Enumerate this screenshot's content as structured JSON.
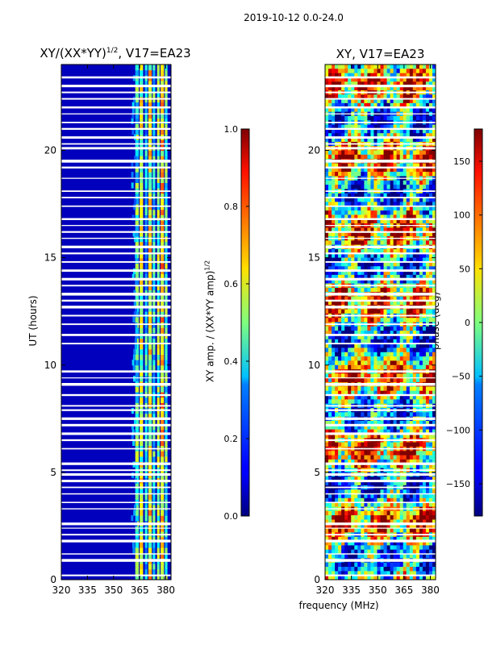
{
  "figure": {
    "suptitle": "2019-10-12 0.0-24.0",
    "xlabel": "frequency (MHz)"
  },
  "left_panel": {
    "title_main": "XY/(XX*YY)",
    "title_sup": "1/2",
    "title_tail": ", V17=EA23",
    "ylabel": "UT (hours)"
  },
  "right_panel": {
    "title": "XY, V17=EA23"
  },
  "amp_colorbar": {
    "label_main": "XY amp. / (XX*YY amp)",
    "label_sup": "1/2"
  },
  "phase_colorbar": {
    "label": "phase (deg)"
  },
  "chart_data": [
    {
      "type": "heatmap",
      "title": "XY/(XX*YY)^1/2, V17=EA23",
      "xlabel": "",
      "ylabel": "UT (hours)",
      "xlim": [
        320,
        383
      ],
      "ylim": [
        0,
        24
      ],
      "xticks": [
        320,
        335,
        350,
        365,
        380
      ],
      "yticks": [
        0,
        5,
        10,
        15,
        20
      ],
      "colormap": "jet",
      "color_range": [
        0.0,
        1.0
      ],
      "colorbar_label": "XY amp. / (XX*YY amp)^1/2",
      "colorbar_ticks": [
        0.0,
        0.2,
        0.4,
        0.6,
        0.8,
        1.0
      ],
      "flagged_utc_hours_approx": [
        0.2,
        0.9,
        1.2,
        1.8,
        2.1,
        2.4,
        2.6,
        3.3,
        3.6,
        4.0,
        4.3,
        4.6,
        4.9,
        5.1,
        5.4,
        6.1,
        6.5,
        6.8,
        7.2,
        7.5,
        7.9,
        8.1,
        8.6,
        9.1,
        9.4,
        9.7,
        11.0,
        11.4,
        11.9,
        12.3,
        12.7,
        13.0,
        13.3,
        13.7,
        14.0,
        14.4,
        14.8,
        15.2,
        15.5,
        15.9,
        16.2,
        16.5,
        16.8,
        17.4,
        17.8,
        18.1,
        18.7,
        19.2,
        19.5,
        20.1,
        20.3,
        20.6,
        21.0,
        21.3,
        21.7,
        22.0,
        22.4,
        22.7,
        23.0,
        23.4
      ]
    },
    {
      "type": "heatmap",
      "title": "XY, V17=EA23",
      "xlabel": "frequency (MHz)",
      "ylabel": "",
      "xlim": [
        320,
        383
      ],
      "ylim": [
        0,
        24
      ],
      "xticks": [
        320,
        335,
        350,
        365,
        380
      ],
      "yticks": [
        0,
        5,
        10,
        15,
        20
      ],
      "colormap": "jet",
      "color_range": [
        -180,
        180
      ],
      "colorbar_label": "phase (deg)",
      "colorbar_ticks": [
        -150,
        -100,
        -50,
        0,
        50,
        100,
        150
      ]
    }
  ],
  "colors": {
    "jet_low": "#00007f",
    "jet_mid": "#7fff7f",
    "jet_high": "#7f0000",
    "flag": "#ffffff"
  }
}
